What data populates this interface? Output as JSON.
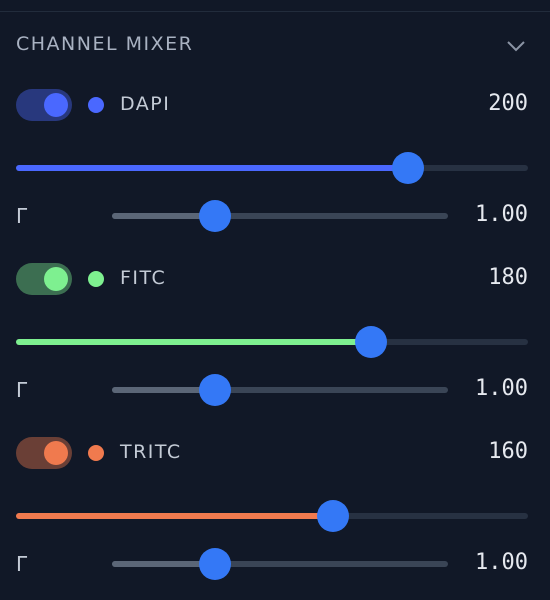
{
  "panel": {
    "title": "CHANNEL MIXER",
    "gamma_symbol": "Γ",
    "intensity_range": [
      0,
      255
    ],
    "gamma_range": [
      0.2,
      3
    ],
    "channels": [
      {
        "name": "DAPI",
        "enabled": true,
        "color": "#4a68ff",
        "value": 200,
        "gamma": 1,
        "gamma_label": "1.00"
      },
      {
        "name": "FITC",
        "enabled": true,
        "color": "#7ef090",
        "value": 180,
        "gamma": 1,
        "gamma_label": "1.00"
      },
      {
        "name": "TRITC",
        "enabled": true,
        "color": "#f07a4e",
        "value": 160,
        "gamma": 1,
        "gamma_label": "1.00"
      }
    ]
  }
}
